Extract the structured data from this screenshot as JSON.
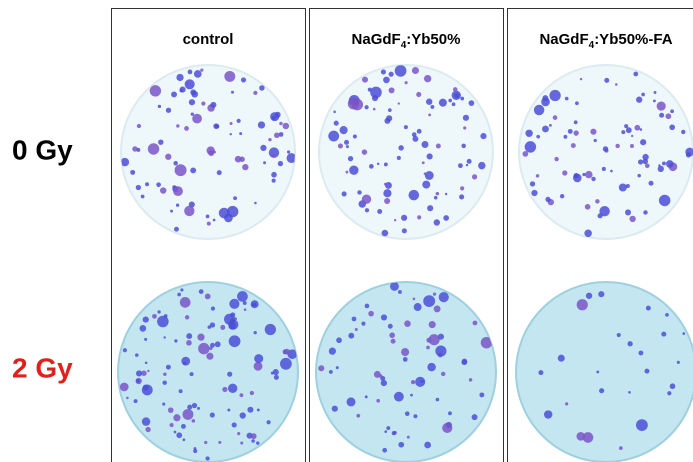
{
  "columns": [
    {
      "label_parts": [
        "control"
      ]
    },
    {
      "label_parts": [
        "NaGdF",
        "4",
        ":Yb50%"
      ]
    },
    {
      "label_parts": [
        "NaGdF",
        "4",
        ":Yb50%-FA"
      ]
    }
  ],
  "rows": [
    {
      "label": "0 Gy"
    },
    {
      "label": "2 Gy"
    }
  ]
}
